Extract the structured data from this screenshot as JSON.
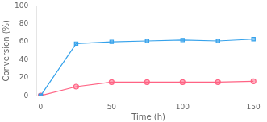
{
  "chart_data": {
    "type": "line",
    "x": [
      0,
      25,
      50,
      75,
      100,
      125,
      150
    ],
    "series": [
      {
        "marker": "square",
        "values": [
          0,
          58,
          60,
          61,
          62,
          61,
          63
        ]
      },
      {
        "marker": "circle",
        "values": [
          0,
          10,
          15,
          15,
          15,
          15,
          16
        ]
      }
    ],
    "x_label": "Time (h)",
    "y_label": "Conversion (%)",
    "xlim": [
      -3,
      155
    ],
    "ylim": [
      0,
      100
    ],
    "xticks": [
      0,
      50,
      100,
      150
    ],
    "yticks": [
      0,
      20,
      40,
      60,
      80,
      100
    ],
    "grid": false
  }
}
